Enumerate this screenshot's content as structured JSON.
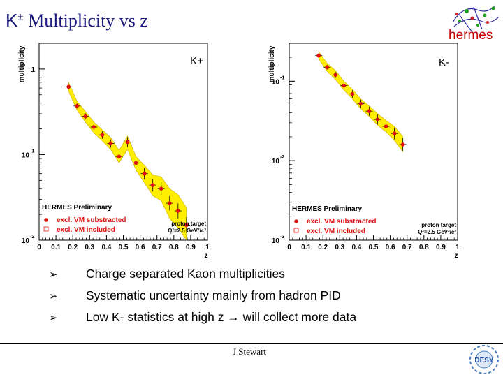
{
  "slide": {
    "title_k": "K",
    "title_pm": "±",
    "title_rest": " Multiplicity vs z",
    "logo_text": "hermes",
    "bullets": [
      "Charge separated Kaon multiplicities",
      "Systematic uncertainty mainly from hadron PID",
      "Low K- statistics at high z → will collect more data"
    ],
    "author": "J Stewart",
    "desy_label": "DESY"
  },
  "chart_data": [
    {
      "type": "scatter",
      "panel_label": "K+",
      "xlabel": "z",
      "ylabel": "multiplicity",
      "yscale": "log",
      "xlim": [
        0,
        1
      ],
      "ylim": [
        0.01,
        2
      ],
      "x_ticks": [
        "0",
        "0.1",
        "0.2",
        "0.3",
        "0.4",
        "0.5",
        "0.6",
        "0.7",
        "0.8",
        "0.9",
        "1"
      ],
      "y_ticks": [
        {
          "value": 1,
          "label": "1",
          "exp": ""
        },
        {
          "value": 0.1,
          "label": "10",
          "exp": "-1"
        },
        {
          "value": 0.01,
          "label": "10",
          "exp": "-2"
        }
      ],
      "legend_title": "HERMES Preliminary",
      "legend_items": [
        "excl. VM substracted",
        "excl. VM included"
      ],
      "target_note": "proton target",
      "q2_note": "Q²=2.5 GeV²/c²",
      "series": [
        {
          "name": "excl. VM substracted",
          "x": [
            0.175,
            0.225,
            0.275,
            0.325,
            0.375,
            0.425,
            0.475,
            0.525,
            0.575,
            0.625,
            0.675,
            0.725,
            0.775,
            0.825,
            0.875
          ],
          "values": [
            0.62,
            0.37,
            0.28,
            0.21,
            0.17,
            0.135,
            0.095,
            0.14,
            0.08,
            0.06,
            0.044,
            0.04,
            0.027,
            0.022,
            0.015
          ]
        }
      ],
      "band_low": [
        0.55,
        0.33,
        0.24,
        0.18,
        0.145,
        0.115,
        0.08,
        0.115,
        0.066,
        0.047,
        0.033,
        0.029,
        0.018,
        0.014,
        0.01
      ],
      "band_high": [
        0.7,
        0.42,
        0.32,
        0.24,
        0.195,
        0.158,
        0.112,
        0.165,
        0.095,
        0.075,
        0.058,
        0.055,
        0.04,
        0.034,
        0.024
      ]
    },
    {
      "type": "scatter",
      "panel_label": "K-",
      "xlabel": "z",
      "ylabel": "multiplicity",
      "yscale": "log",
      "xlim": [
        0,
        1
      ],
      "ylim": [
        0.001,
        0.3
      ],
      "x_ticks": [
        "0",
        "0.1",
        "0.2",
        "0.3",
        "0.4",
        "0.5",
        "0.6",
        "0.7",
        "0.8",
        "0.9",
        "1"
      ],
      "y_ticks": [
        {
          "value": 0.1,
          "label": "10",
          "exp": "-1"
        },
        {
          "value": 0.01,
          "label": "10",
          "exp": "-2"
        },
        {
          "value": 0.001,
          "label": "10",
          "exp": "-3"
        }
      ],
      "legend_title": "HERMES Preliminary",
      "legend_items": [
        "excl. VM substracted",
        "excl. VM included"
      ],
      "target_note": "proton target",
      "q2_note": "Q²=2.5 GeV²/c²",
      "series": [
        {
          "name": "excl. VM substracted",
          "x": [
            0.175,
            0.225,
            0.275,
            0.325,
            0.375,
            0.425,
            0.475,
            0.525,
            0.575,
            0.625,
            0.675
          ],
          "values": [
            0.21,
            0.15,
            0.12,
            0.088,
            0.069,
            0.052,
            0.042,
            0.033,
            0.027,
            0.022,
            0.016
          ]
        }
      ],
      "band_low": [
        0.19,
        0.133,
        0.105,
        0.077,
        0.06,
        0.045,
        0.036,
        0.028,
        0.023,
        0.018,
        0.013
      ],
      "band_high": [
        0.235,
        0.168,
        0.136,
        0.1,
        0.079,
        0.06,
        0.049,
        0.039,
        0.032,
        0.027,
        0.02
      ]
    }
  ]
}
